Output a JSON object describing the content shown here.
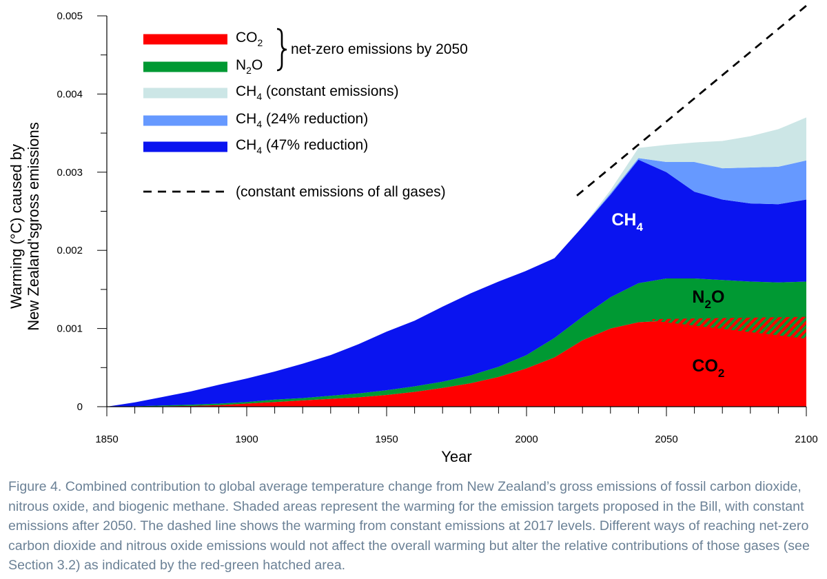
{
  "chart_data": {
    "type": "area",
    "xlabel": "Year",
    "ylabel_line1": "Warming (°C) caused by",
    "ylabel_line2": "New Zealand'sgross emissions",
    "xlim": [
      1850,
      2100
    ],
    "ylim": [
      0,
      0.005
    ],
    "x_ticks": [
      "1850",
      "1900",
      "1950",
      "2000",
      "2050",
      "2100"
    ],
    "y_ticks": [
      "0",
      "0.001",
      "0.002",
      "0.003",
      "0.004",
      "0.005"
    ],
    "x": [
      1850,
      1860,
      1870,
      1880,
      1890,
      1900,
      1910,
      1920,
      1930,
      1940,
      1950,
      1960,
      1970,
      1980,
      1990,
      2000,
      2010,
      2020,
      2030,
      2040,
      2050,
      2060,
      2070,
      2080,
      2090,
      2100
    ],
    "series": [
      {
        "name": "CO2",
        "color": "#ff0000",
        "values": [
          0,
          0,
          5e-06,
          1e-05,
          2e-05,
          4e-05,
          6e-05,
          8e-05,
          0.0001,
          0.00012,
          0.00015,
          0.00019,
          0.00024,
          0.0003,
          0.00038,
          0.00049,
          0.00063,
          0.00085,
          0.001,
          0.00108,
          0.0011,
          0.0011,
          0.001,
          0.00098,
          0.00093,
          0.00087
        ]
      },
      {
        "name": "N2O",
        "color": "#009933",
        "values": [
          0,
          5e-06,
          1e-05,
          1.5e-05,
          2e-05,
          2e-05,
          3e-05,
          3e-05,
          4e-05,
          5e-05,
          6e-05,
          7e-05,
          8e-05,
          0.0001,
          0.00013,
          0.00017,
          0.00025,
          0.0003,
          0.0004,
          0.0005,
          0.00054,
          0.00054,
          0.00062,
          0.00062,
          0.00066,
          0.00073
        ]
      },
      {
        "name": "CH4 (47% reduction)",
        "color": "#0a14f0",
        "values": [
          0,
          5e-05,
          0.00011,
          0.00017,
          0.00024,
          0.0003,
          0.00036,
          0.00044,
          0.00052,
          0.00063,
          0.00075,
          0.00084,
          0.00096,
          0.00105,
          0.00109,
          0.00108,
          0.00102,
          0.00115,
          0.00131,
          0.00158,
          0.00136,
          0.00111,
          0.00103,
          0.001,
          0.001,
          0.00105
        ]
      },
      {
        "name": "CH4 (24% reduction)",
        "color": "#6699ff",
        "values": [
          0,
          0,
          0,
          0,
          0,
          0,
          0,
          0,
          0,
          0,
          0,
          0,
          0,
          0,
          0,
          0,
          0,
          0,
          2e-05,
          2e-05,
          0.00013,
          0.00038,
          0.0004,
          0.00046,
          0.00048,
          0.0005
        ]
      },
      {
        "name": "CH4 (constant emissions)",
        "color": "#cce6e6",
        "values": [
          0,
          0,
          0,
          0,
          0,
          0,
          0,
          0,
          0,
          0,
          0,
          0,
          0,
          0,
          0,
          0,
          0,
          0,
          4e-05,
          0.00013,
          0.00022,
          0.00025,
          0.00035,
          0.0004,
          0.00048,
          0.00055
        ]
      }
    ],
    "dashed_line": {
      "name": "(constant emissions of all gases)",
      "x": [
        2018,
        2100
      ],
      "y": [
        0.0027,
        0.00513
      ]
    },
    "hatched_region": {
      "name": "red-green hatched area",
      "x_range": [
        2045,
        2100
      ],
      "lower": [
        0.0011,
        0.00087
      ],
      "upper": [
        0.00112,
        0.00115
      ]
    },
    "annotations": {
      "ch4": {
        "main": "CH",
        "sub": "4",
        "x": 2036,
        "y": 0.00232
      },
      "n2o": {
        "main": "N",
        "sub": "2",
        "end": "O",
        "x": 2065,
        "y": 0.00133
      },
      "co2": {
        "main": "CO",
        "sub": "2",
        "x": 2065,
        "y": 0.00045
      }
    },
    "legend": {
      "placement": "top-left",
      "items": [
        {
          "id": "co2",
          "main": "CO",
          "sub": "2",
          "end": "",
          "color": "#ff0000"
        },
        {
          "id": "n2o",
          "main": "N",
          "sub": "2",
          "end": "O",
          "color": "#009933"
        },
        {
          "id": "ch4-const",
          "main": "CH",
          "sub": "4",
          "end": " (constant emissions)",
          "color": "#cce6e6"
        },
        {
          "id": "ch4-24",
          "main": "CH",
          "sub": "4",
          "end": " (24% reduction)",
          "color": "#6699ff"
        },
        {
          "id": "ch4-47",
          "main": "CH",
          "sub": "4",
          "end": " (47% reduction)",
          "color": "#0a14f0"
        }
      ],
      "bracket_text": "net-zero emissions by 2050",
      "dashed_text": "(constant emissions of all gases)"
    }
  },
  "caption": "Figure 4. Combined contribution to global average temperature change from New Zealand’s gross emissions of fossil carbon dioxide, nitrous oxide, and biogenic methane. Shaded areas represent the warming for the emission targets proposed in the Bill, with constant emissions after 2050. The dashed line shows the warming from constant emissions at 2017 levels. Different ways of reaching net-zero carbon dioxide and nitrous oxide emissions would not affect the overall warming but alter the relative contributions of those gases (see Section 3.2) as indicated by the red-green hatched area."
}
